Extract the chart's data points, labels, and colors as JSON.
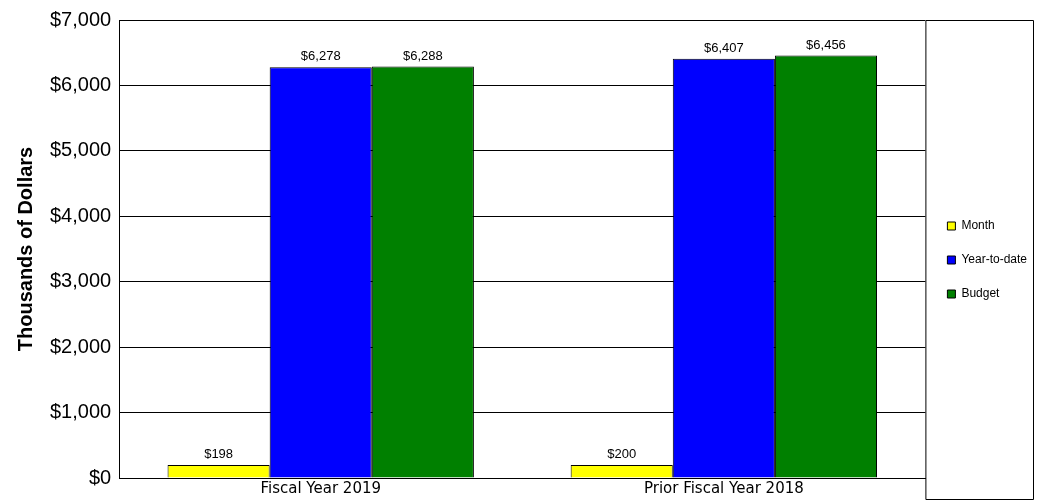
{
  "chart_data": {
    "type": "bar",
    "ylabel": "Thousands of Dollars",
    "categories": [
      "Fiscal Year 2019",
      "Prior Fiscal Year 2018"
    ],
    "series": [
      {
        "name": "Month",
        "color": "#ffff00",
        "values": [
          198,
          200
        ],
        "value_labels": [
          "$198",
          "$200"
        ]
      },
      {
        "name": "Year-to-date",
        "color": "#0000ff",
        "values": [
          6278,
          6407
        ],
        "value_labels": [
          "$6,278",
          "$6,407"
        ]
      },
      {
        "name": "Budget",
        "color": "#008000",
        "values": [
          6288,
          6456
        ],
        "value_labels": [
          "$6,288",
          "$6,456"
        ]
      }
    ],
    "ylim": [
      0,
      7000
    ],
    "yticks": [
      {
        "value": 0,
        "label": "$0"
      },
      {
        "value": 1000,
        "label": "$1,000"
      },
      {
        "value": 2000,
        "label": "$2,000"
      },
      {
        "value": 3000,
        "label": "$3,000"
      },
      {
        "value": 4000,
        "label": "$4,000"
      },
      {
        "value": 5000,
        "label": "$5,000"
      },
      {
        "value": 6000,
        "label": "$6,000"
      },
      {
        "value": 7000,
        "label": "$7,000"
      }
    ],
    "grid": "y",
    "legend": "right"
  }
}
